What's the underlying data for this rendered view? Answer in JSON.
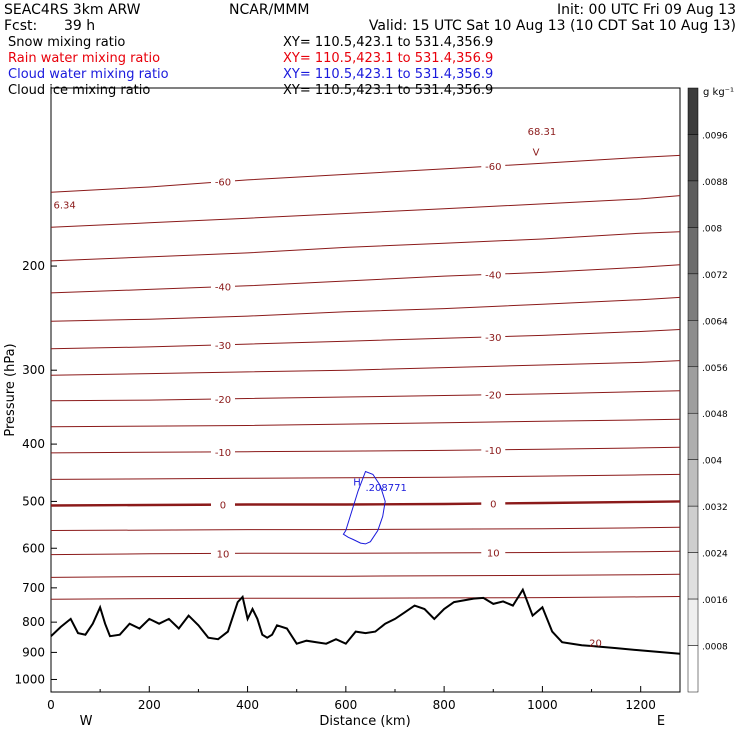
{
  "header": {
    "model": "SEAC4RS  3km ARW",
    "org": "NCAR/MMM",
    "init": "Init: 00 UTC Fri 09 Aug 13",
    "fcst_label": "Fcst:",
    "fcst_value": "39 h",
    "valid": "Valid: 15 UTC Sat 10 Aug 13 (10 CDT Sat 10 Aug 13)"
  },
  "fields": [
    {
      "label": "Snow mixing ratio",
      "xy": "XY= 110.5,423.1 to 531.4,356.9",
      "color": "#000000"
    },
    {
      "label": "Rain water mixing ratio",
      "xy": "XY= 110.5,423.1 to 531.4,356.9",
      "color": "#e8000b"
    },
    {
      "label": "Cloud water mixing ratio",
      "xy": "XY= 110.5,423.1 to 531.4,356.9",
      "color": "#1a1adc"
    },
    {
      "label": "Cloud ice mixing ratio",
      "xy": "XY= 110.5,423.1 to 531.4,356.9",
      "color": "#000000"
    }
  ],
  "colorbar": {
    "unit": "g kg⁻¹",
    "levels": [
      ".0096",
      ".0088",
      ".008",
      ".0072",
      ".0064",
      ".0056",
      ".0048",
      ".004",
      ".0032",
      ".0024",
      ".0016",
      ".0008"
    ]
  },
  "chart_data": {
    "type": "line",
    "xlabel": "Distance (km)",
    "ylabel": "Pressure (hPa)",
    "xlim": [
      0,
      1280
    ],
    "ylim": [
      1050,
      100
    ],
    "y_scale": "log",
    "x_ticks": [
      0,
      200,
      400,
      600,
      800,
      1000,
      1200
    ],
    "x_tick_labels": [
      "0",
      "200",
      "400",
      "600",
      "800",
      "1000",
      "1200"
    ],
    "y_ticks": [
      200,
      300,
      400,
      500,
      600,
      700,
      800,
      900,
      1000
    ],
    "y_tick_labels": [
      "200",
      "300",
      "400",
      "500",
      "600",
      "700",
      "800",
      "900",
      "1000"
    ],
    "end_labels": {
      "left": "W",
      "right": "E"
    },
    "terrain": {
      "name": "terrain",
      "color": "#000000",
      "x": [
        0,
        20,
        40,
        55,
        70,
        85,
        100,
        110,
        120,
        140,
        160,
        180,
        200,
        220,
        240,
        260,
        280,
        300,
        320,
        340,
        360,
        380,
        390,
        400,
        410,
        420,
        430,
        440,
        450,
        460,
        480,
        500,
        520,
        540,
        560,
        580,
        600,
        620,
        640,
        660,
        680,
        700,
        720,
        740,
        760,
        780,
        800,
        820,
        840,
        860,
        880,
        900,
        920,
        940,
        960,
        980,
        1000,
        1020,
        1040,
        1060,
        1080,
        1100,
        1150,
        1200,
        1280
      ],
      "y": [
        845,
        815,
        790,
        835,
        840,
        805,
        755,
        805,
        845,
        840,
        805,
        820,
        790,
        805,
        790,
        820,
        780,
        810,
        850,
        855,
        830,
        740,
        725,
        790,
        760,
        790,
        840,
        850,
        840,
        810,
        820,
        870,
        860,
        865,
        870,
        855,
        870,
        830,
        835,
        830,
        805,
        790,
        770,
        750,
        760,
        790,
        760,
        740,
        735,
        730,
        728,
        745,
        738,
        750,
        705,
        780,
        755,
        830,
        865,
        870,
        875,
        878,
        885,
        893,
        905
      ]
    },
    "isotherms": {
      "unit": "°C",
      "color": "#8b1a1a",
      "bold_level": 0,
      "levels": [
        {
          "label": "-60",
          "x": [
            0,
            200,
            400,
            600,
            800,
            1000,
            1200,
            1280
          ],
          "y": [
            150,
            147,
            143,
            140,
            137,
            134,
            131,
            130
          ]
        },
        {
          "label": "",
          "x": [
            0,
            200,
            400,
            600,
            800,
            1000,
            1200,
            1280
          ],
          "y": [
            172,
            169,
            166,
            163,
            160,
            157,
            154,
            152
          ]
        },
        {
          "label": "",
          "x": [
            0,
            200,
            400,
            600,
            800,
            1000,
            1200,
            1280
          ],
          "y": [
            196,
            193,
            190,
            186,
            183,
            180,
            176,
            175
          ]
        },
        {
          "label": "-40",
          "x": [
            0,
            200,
            400,
            600,
            800,
            1000,
            1200,
            1280
          ],
          "y": [
            222,
            219,
            216,
            212,
            208,
            205,
            201,
            199
          ]
        },
        {
          "label": "",
          "x": [
            0,
            200,
            400,
            600,
            800,
            1000,
            1200,
            1280
          ],
          "y": [
            248,
            246,
            243,
            239,
            236,
            232,
            228,
            226
          ]
        },
        {
          "label": "-30",
          "x": [
            0,
            200,
            400,
            600,
            800,
            1000,
            1200,
            1280
          ],
          "y": [
            276,
            274,
            271,
            268,
            265,
            262,
            258,
            256
          ]
        },
        {
          "label": "",
          "x": [
            0,
            200,
            400,
            600,
            800,
            1000,
            1200,
            1280
          ],
          "y": [
            306,
            304,
            302,
            300,
            297,
            294,
            291,
            289
          ]
        },
        {
          "label": "-20",
          "x": [
            0,
            200,
            400,
            600,
            800,
            1000,
            1200,
            1280
          ],
          "y": [
            338,
            337,
            335,
            333,
            331,
            329,
            326,
            325
          ]
        },
        {
          "label": "",
          "x": [
            0,
            200,
            400,
            600,
            800,
            1000,
            1200,
            1280
          ],
          "y": [
            374,
            373,
            372,
            370,
            368,
            366,
            364,
            363
          ]
        },
        {
          "label": "-10",
          "x": [
            0,
            200,
            400,
            600,
            800,
            1000,
            1200,
            1280
          ],
          "y": [
            414,
            413,
            412,
            411,
            410,
            408,
            406,
            405
          ]
        },
        {
          "label": "",
          "x": [
            0,
            200,
            400,
            600,
            800,
            1000,
            1200,
            1280
          ],
          "y": [
            459,
            458,
            457,
            456,
            455,
            453,
            451,
            450
          ]
        },
        {
          "label": "0",
          "x": [
            0,
            200,
            400,
            600,
            800,
            1000,
            1200,
            1280
          ],
          "y": [
            508,
            507,
            506,
            506,
            505,
            503,
            501,
            500
          ]
        },
        {
          "label": "",
          "x": [
            0,
            200,
            400,
            600,
            800,
            1000,
            1200,
            1280
          ],
          "y": [
            560,
            559,
            558,
            558,
            557,
            556,
            554,
            553
          ]
        },
        {
          "label": "10",
          "x": [
            0,
            200,
            400,
            600,
            800,
            1000,
            1200,
            1280
          ],
          "y": [
            615,
            613,
            612,
            612,
            611,
            610,
            608,
            607
          ]
        },
        {
          "label": "",
          "x": [
            0,
            200,
            400,
            600,
            800,
            1000,
            1200,
            1280
          ],
          "y": [
            672,
            670,
            669,
            669,
            668,
            667,
            665,
            664
          ]
        },
        {
          "label": "",
          "x": [
            0,
            200,
            400,
            600,
            800,
            1000,
            1200,
            1280
          ],
          "y": [
            732,
            730,
            729,
            729,
            728,
            727,
            725,
            724
          ]
        }
      ]
    },
    "annotations": [
      {
        "text": "6.34",
        "x": 5,
        "y": 160
      },
      {
        "text": "H",
        "x": 615,
        "y": 470
      },
      {
        "text": ".208771",
        "x": 640,
        "y": 480
      },
      {
        "text": "68.31",
        "x": 970,
        "y": 120
      },
      {
        "text": "V",
        "x": 980,
        "y": 130
      },
      {
        "text": "20",
        "x": 1095,
        "y": 880
      }
    ]
  }
}
